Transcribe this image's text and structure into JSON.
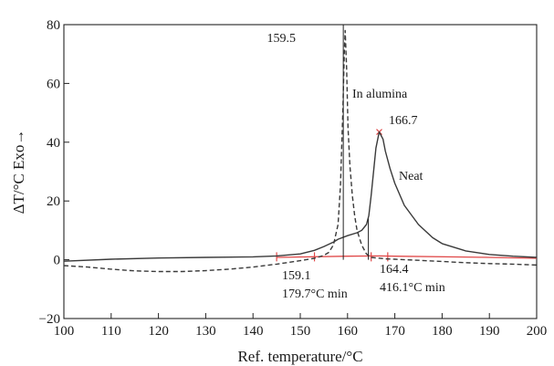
{
  "chart_data": {
    "type": "line",
    "xlabel": "Ref. temperature/°C",
    "ylabel": "ΔT/°C  Exo→",
    "xlim": [
      100,
      200
    ],
    "ylim": [
      -20,
      80
    ],
    "x_ticks": [
      100,
      110,
      120,
      130,
      140,
      150,
      160,
      170,
      180,
      190,
      200
    ],
    "y_ticks": [
      -20,
      0,
      20,
      40,
      60,
      80
    ],
    "grid": false,
    "series": [
      {
        "name": "In alumina",
        "line_style": "dashed",
        "color": "#3a3a3a",
        "x": [
          100,
          105,
          110,
          115,
          120,
          125,
          130,
          135,
          140,
          145,
          150,
          153,
          155,
          156,
          157,
          158,
          158.5,
          159,
          159.3,
          159.5,
          159.8,
          160.1,
          160.5,
          161,
          161.5,
          162,
          163,
          164,
          165,
          168,
          170,
          175,
          180,
          185,
          190,
          195,
          200
        ],
        "y": [
          -2,
          -2.5,
          -3.2,
          -3.8,
          -4,
          -4,
          -3.7,
          -3.2,
          -2.5,
          -1.5,
          -0.3,
          0.5,
          1.5,
          2.5,
          5,
          12,
          25,
          50,
          70,
          78,
          65,
          45,
          32,
          22,
          15,
          10,
          5,
          2,
          0.8,
          0.3,
          0.2,
          -0.2,
          -0.6,
          -1,
          -1.3,
          -1.5,
          -1.8
        ]
      },
      {
        "name": "Neat",
        "line_style": "solid",
        "color": "#3a3a3a",
        "x": [
          100,
          110,
          120,
          130,
          140,
          145,
          150,
          153,
          155,
          157,
          158,
          160,
          162,
          163,
          164,
          164.5,
          165,
          165.5,
          166,
          166.7,
          167.5,
          168,
          169,
          170,
          172,
          175,
          178,
          180,
          185,
          190,
          195,
          200
        ],
        "y": [
          -0.5,
          0.2,
          0.6,
          0.8,
          1,
          1.3,
          2,
          3.2,
          4.5,
          6,
          7,
          8.2,
          9.2,
          10,
          12,
          15,
          22,
          30,
          38,
          43.5,
          41,
          37,
          31,
          26,
          18.5,
          12,
          7.5,
          5.5,
          3,
          1.8,
          1.2,
          0.8
        ]
      }
    ],
    "red_baseline": {
      "color": "#e04848",
      "x": [
        145,
        160,
        166.7,
        170,
        190,
        200
      ],
      "y": [
        0.8,
        1.2,
        1.3,
        1.2,
        0.8,
        0.5
      ],
      "tick_marks_x": [
        145,
        153,
        165,
        168.5
      ]
    },
    "vertical_markers": [
      {
        "x": 159.1,
        "y_from": 0,
        "y_to": 80
      },
      {
        "x": 164.4,
        "y_from": 0,
        "y_to": 14
      }
    ],
    "annotations": {
      "peak_alumina": "159.5",
      "series_alumina": "In alumina",
      "peak_neat": "166.7",
      "series_neat": "Neat",
      "onset_alumina": "159.1",
      "rate_alumina": "179.7°C  min",
      "onset_neat": "164.4",
      "rate_neat": "416.1°C  min"
    }
  }
}
